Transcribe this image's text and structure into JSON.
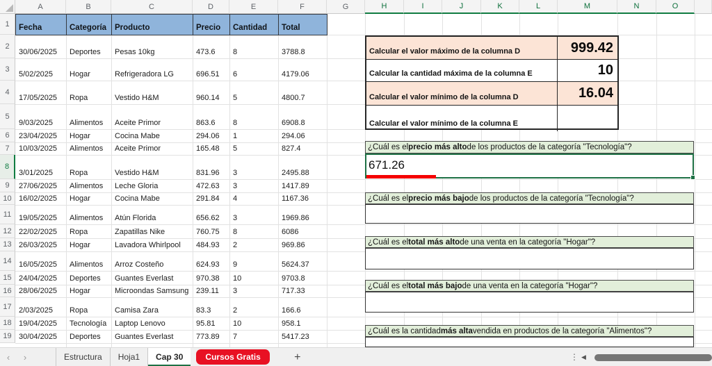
{
  "colors": {
    "table_header_fill": "#8FB4DB",
    "calc_highlight_fill": "#FCE4D6",
    "question_fill": "#E2EFDA",
    "selection_green": "#1E7145",
    "annotation_red": "#F50000",
    "red_tab_fill": "#E81123"
  },
  "grid": {
    "col_letters": [
      "A",
      "B",
      "C",
      "D",
      "E",
      "F",
      "G",
      "H",
      "I",
      "J",
      "K",
      "L",
      "M",
      "N",
      "O",
      ""
    ],
    "selected_columns": [
      "H",
      "I",
      "J",
      "K",
      "L",
      "M",
      "N",
      "O"
    ],
    "row_numbers": [
      1,
      2,
      3,
      4,
      5,
      6,
      7,
      8,
      9,
      10,
      11,
      12,
      13,
      14,
      15,
      16,
      17,
      18,
      19
    ],
    "active_row": 8
  },
  "table": {
    "headers": [
      "Fecha",
      "Categoría",
      "Producto",
      "Precio",
      "Cantidad",
      "Total"
    ],
    "rows": [
      [
        "30/06/2025",
        "Deportes",
        "Pesas 10kg",
        "473.6",
        "8",
        "3788.8"
      ],
      [
        "5/02/2025",
        "Hogar",
        "Refrigeradora LG",
        "696.51",
        "6",
        "4179.06"
      ],
      [
        "17/05/2025",
        "Ropa",
        "Vestido H&M",
        "960.14",
        "5",
        "4800.7"
      ],
      [
        "9/03/2025",
        "Alimentos",
        "Aceite Primor",
        "863.6",
        "8",
        "6908.8"
      ],
      [
        "23/04/2025",
        "Hogar",
        "Cocina Mabe",
        "294.06",
        "1",
        "294.06"
      ],
      [
        "10/03/2025",
        "Alimentos",
        "Aceite Primor",
        "165.48",
        "5",
        "827.4"
      ],
      [
        "3/01/2025",
        "Ropa",
        "Vestido H&M",
        "831.96",
        "3",
        "2495.88"
      ],
      [
        "27/06/2025",
        "Alimentos",
        "Leche Gloria",
        "472.63",
        "3",
        "1417.89"
      ],
      [
        "16/02/2025",
        "Hogar",
        "Cocina Mabe",
        "291.84",
        "4",
        "1167.36"
      ],
      [
        "19/05/2025",
        "Alimentos",
        "Atún Florida",
        "656.62",
        "3",
        "1969.86"
      ],
      [
        "22/02/2025",
        "Ropa",
        "Zapatillas Nike",
        "760.75",
        "8",
        "6086"
      ],
      [
        "26/03/2025",
        "Hogar",
        "Lavadora Whirlpool",
        "484.93",
        "2",
        "969.86"
      ],
      [
        "16/05/2025",
        "Alimentos",
        "Arroz Costeño",
        "624.93",
        "9",
        "5624.37"
      ],
      [
        "24/04/2025",
        "Deportes",
        "Guantes Everlast",
        "970.38",
        "10",
        "9703.8"
      ],
      [
        "28/06/2025",
        "Hogar",
        "Microondas Samsung",
        "239.11",
        "3",
        "717.33"
      ],
      [
        "2/03/2025",
        "Ropa",
        "Camisa Zara",
        "83.3",
        "2",
        "166.6"
      ],
      [
        "19/04/2025",
        "Tecnología",
        "Laptop Lenovo",
        "95.81",
        "10",
        "958.1"
      ],
      [
        "30/04/2025",
        "Deportes",
        "Guantes Everlast",
        "773.89",
        "7",
        "5417.23"
      ]
    ]
  },
  "calc_box": {
    "rows": [
      {
        "label": "Calcular el valor máximo de la columna D",
        "value": "999.42",
        "highlight": true
      },
      {
        "label": "Calcular la cantidad máxima de la columna E",
        "value": "10",
        "highlight": false
      },
      {
        "label": "Calcular el valor mínimo de la columna D",
        "value": "16.04",
        "highlight": true
      },
      {
        "label": "Calcular el valor mínimo de la columna E",
        "value": "",
        "highlight": false
      }
    ]
  },
  "questions": [
    {
      "prefix": "¿Cuál es el ",
      "bold": "precio más alto",
      "suffix": " de los productos de la categoría \"Tecnología\"?",
      "answer": "671.26",
      "active": true,
      "red_underline": true
    },
    {
      "prefix": "¿Cuál es el ",
      "bold": "precio más bajo",
      "suffix": " de los productos de la categoría \"Tecnología\"?",
      "answer": "",
      "active": false,
      "red_underline": false
    },
    {
      "prefix": "¿Cuál es el ",
      "bold": "total más alto",
      "suffix": " de una venta en la categoría \"Hogar\"?",
      "answer": "",
      "active": false,
      "red_underline": false
    },
    {
      "prefix": "¿Cuál es el ",
      "bold": "total más bajo",
      "suffix": " de una venta en la categoría \"Hogar\"?",
      "answer": "",
      "active": false,
      "red_underline": false
    },
    {
      "prefix": "¿Cuál es la cantidad ",
      "bold": "más alta",
      "suffix": " vendida en productos de la categoría \"Alimentos\"?",
      "answer": "",
      "active": false,
      "red_underline": false
    }
  ],
  "sheet_tabs": {
    "tabs": [
      {
        "label": "Estructura",
        "type": "normal"
      },
      {
        "label": "Hoja1",
        "type": "normal"
      },
      {
        "label": "Cap 30",
        "type": "active"
      },
      {
        "label": "Cursos Gratis",
        "type": "red"
      }
    ]
  },
  "icons": {
    "prev_sheet": "‹",
    "next_sheet": "›",
    "add_sheet": "+",
    "more": "⋮",
    "scroll_left": "◀"
  }
}
